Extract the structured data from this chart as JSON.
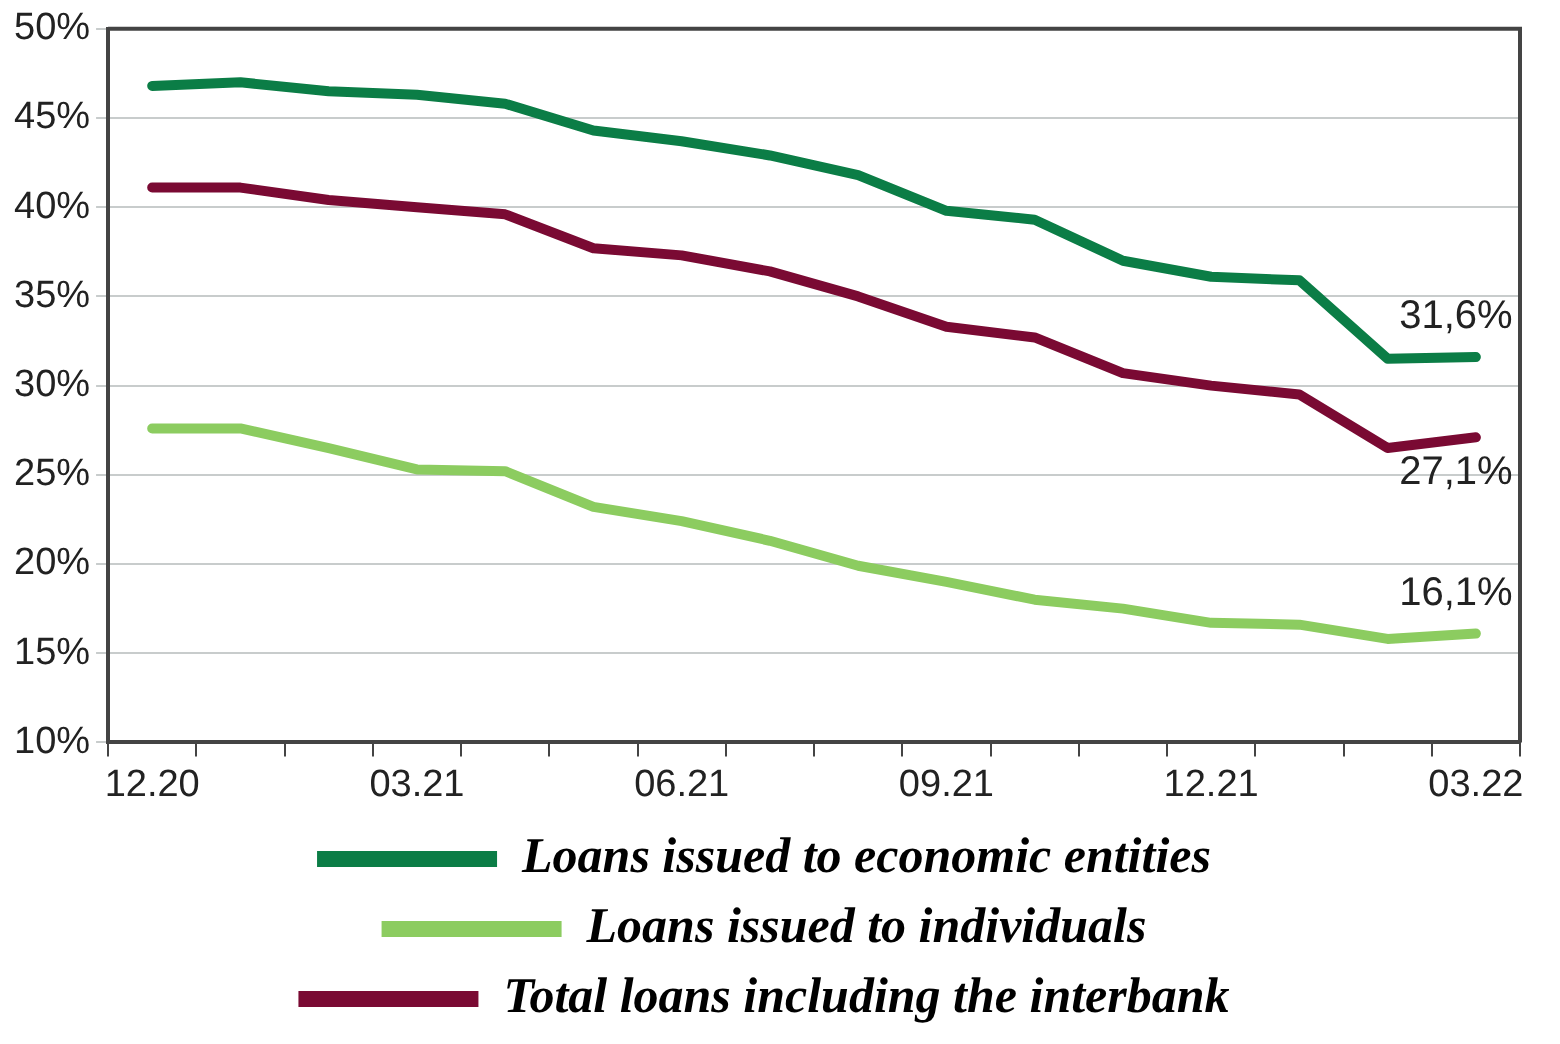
{
  "chart_data": {
    "type": "line",
    "categories": [
      "12.20",
      null,
      null,
      "03.21",
      null,
      null,
      "06.21",
      null,
      null,
      "09.21",
      null,
      null,
      "12.21",
      null,
      null,
      "03.22"
    ],
    "series": [
      {
        "name": "Loans issued to economic entities",
        "color": "#0b7d46",
        "values": [
          46.8,
          47.0,
          46.5,
          46.3,
          45.8,
          44.3,
          43.7,
          42.9,
          41.8,
          39.8,
          39.3,
          37.0,
          36.1,
          35.9,
          31.5,
          31.6
        ]
      },
      {
        "name": "Loans issued to individuals",
        "color": "#8ccc60",
        "values": [
          27.6,
          27.6,
          26.5,
          25.3,
          25.2,
          23.2,
          22.4,
          21.3,
          19.9,
          19.0,
          18.0,
          17.5,
          16.7,
          16.6,
          15.8,
          16.1
        ]
      },
      {
        "name": "Total loans including the interbank",
        "color": "#7a0a33",
        "values": [
          41.1,
          41.1,
          40.4,
          40.0,
          39.6,
          37.7,
          37.3,
          36.4,
          35.0,
          33.3,
          32.7,
          30.7,
          30.0,
          29.5,
          26.5,
          27.1
        ]
      }
    ],
    "ylim": [
      10,
      50
    ],
    "yticks": [
      {
        "value": 10,
        "label": "10%"
      },
      {
        "value": 15,
        "label": "15%"
      },
      {
        "value": 20,
        "label": "20%"
      },
      {
        "value": 25,
        "label": "25%"
      },
      {
        "value": 30,
        "label": "30%"
      },
      {
        "value": 35,
        "label": "35%"
      },
      {
        "value": 40,
        "label": "40%"
      },
      {
        "value": 45,
        "label": "45%"
      },
      {
        "value": 50,
        "label": "50%"
      }
    ],
    "grid": "y",
    "legend": "bottom",
    "marker": "none",
    "line_style": "solid",
    "annotations": [
      {
        "text": "31,6%",
        "x": "03.22",
        "y": 31.6
      },
      {
        "text": "27,1%",
        "x": "03.22",
        "y": 27.1
      },
      {
        "text": "16,1%",
        "x": "03.22",
        "y": 16.1
      }
    ]
  }
}
